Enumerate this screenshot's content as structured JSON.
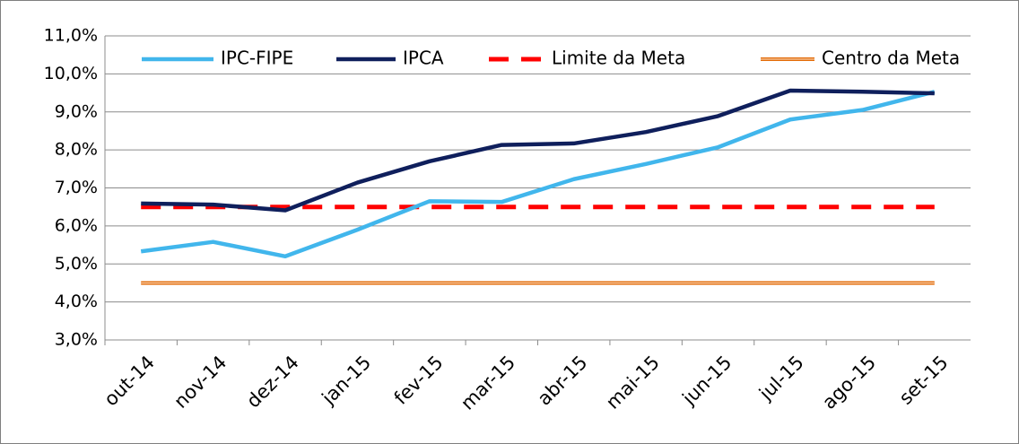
{
  "chart_data": {
    "type": "line",
    "categories": [
      "out-14",
      "nov-14",
      "dez-14",
      "jan-15",
      "fev-15",
      "mar-15",
      "abr-15",
      "mai-15",
      "jun-15",
      "jul-15",
      "ago-15",
      "set-15"
    ],
    "series": [
      {
        "name": "IPC-FIPE",
        "color": "#41b6ec",
        "style": "solid",
        "values": [
          5.33,
          5.58,
          5.2,
          5.9,
          6.65,
          6.63,
          7.23,
          7.63,
          8.07,
          8.8,
          9.05,
          9.53
        ]
      },
      {
        "name": "IPCA",
        "color": "#0f1f5c",
        "style": "solid",
        "values": [
          6.59,
          6.56,
          6.41,
          7.14,
          7.7,
          8.13,
          8.17,
          8.47,
          8.89,
          9.56,
          9.53,
          9.49
        ]
      },
      {
        "name": "Limite da Meta",
        "color": "#ff0000",
        "style": "dashed",
        "values": [
          6.5,
          6.5,
          6.5,
          6.5,
          6.5,
          6.5,
          6.5,
          6.5,
          6.5,
          6.5,
          6.5,
          6.5
        ]
      },
      {
        "name": "Centro da Meta",
        "color": "#e36c09",
        "style": "double",
        "values": [
          4.5,
          4.5,
          4.5,
          4.5,
          4.5,
          4.5,
          4.5,
          4.5,
          4.5,
          4.5,
          4.5,
          4.5
        ]
      }
    ],
    "ylim": [
      3,
      11
    ],
    "yticks": [
      {
        "value": 3,
        "label": "3,0%"
      },
      {
        "value": 4,
        "label": "4,0%"
      },
      {
        "value": 5,
        "label": "5,0%"
      },
      {
        "value": 6,
        "label": "6,0%"
      },
      {
        "value": 7,
        "label": "7,0%"
      },
      {
        "value": 8,
        "label": "8,0%"
      },
      {
        "value": 9,
        "label": "9,0%"
      },
      {
        "value": 10,
        "label": "10,0%"
      },
      {
        "value": 11,
        "label": "11,0%"
      }
    ],
    "grid": true,
    "legend": "top"
  }
}
